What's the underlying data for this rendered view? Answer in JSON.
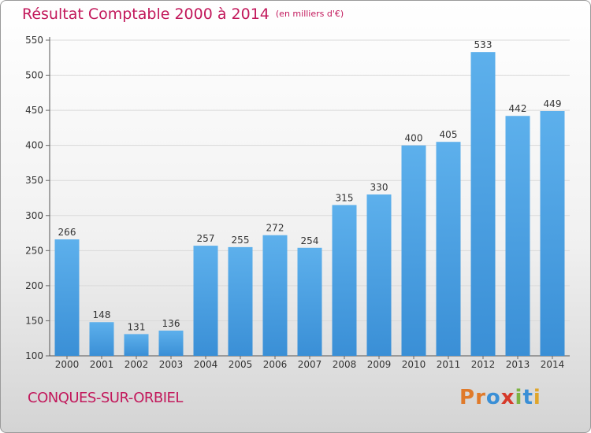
{
  "chart_data": {
    "type": "bar",
    "title": "Résultat Comptable 2000 à 2014",
    "subtitle": "(en milliers d'€)",
    "categories": [
      "2000",
      "2001",
      "2002",
      "2003",
      "2004",
      "2005",
      "2006",
      "2007",
      "2008",
      "2009",
      "2010",
      "2011",
      "2012",
      "2013",
      "2014"
    ],
    "values": [
      266,
      148,
      131,
      136,
      257,
      255,
      272,
      254,
      315,
      330,
      400,
      405,
      533,
      442,
      449
    ],
    "ylim": [
      100,
      550
    ],
    "yticks": [
      100,
      150,
      200,
      250,
      300,
      350,
      400,
      450,
      500,
      550
    ],
    "grid": true,
    "bar_color": "#3a8fd6",
    "bar_color_light": "#5db0ec",
    "title_color": "#c2185b"
  },
  "footer": {
    "commune": "CONQUES-SUR-ORBIEL",
    "logo_letters": [
      "P",
      "r",
      "o",
      "x",
      "i",
      "t",
      "i"
    ],
    "logo_colors": [
      "#e07a2a",
      "#e07a2a",
      "#3a8fd6",
      "#d63a2a",
      "#7cb342",
      "#3a8fd6",
      "#e0a52a"
    ]
  }
}
